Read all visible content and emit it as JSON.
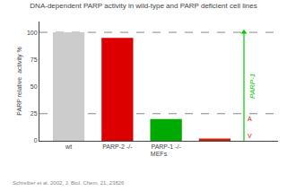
{
  "chart_data": {
    "type": "bar",
    "title": "DNA-dependent PARP activity in wild-type and PARP deficient cell lines",
    "categories": [
      "wt",
      "PARP-2 -/-",
      "PARP-1 -/-",
      null
    ],
    "values": [
      100,
      95,
      20,
      2
    ],
    "colors": [
      "#cccccc",
      "#dd0000",
      "#00aa00",
      "#cc2200"
    ],
    "xlabel": "MEFs",
    "ylabel": "PARP relative  activity %",
    "ylim": [
      0,
      110
    ],
    "yticks": [
      0,
      25,
      50,
      75,
      100
    ],
    "grid": false,
    "reference_lines": [
      25,
      100
    ],
    "annotations": [
      {
        "text": "PARP-1",
        "color": "#00cc00",
        "span": [
          0,
          100
        ]
      },
      {
        "text": "A",
        "color": "#cc2200"
      },
      {
        "text": "V",
        "color": "#cc2200"
      }
    ],
    "source": "Schreiber et al. 2002, J. Biol. Chem. 21, 23826"
  }
}
